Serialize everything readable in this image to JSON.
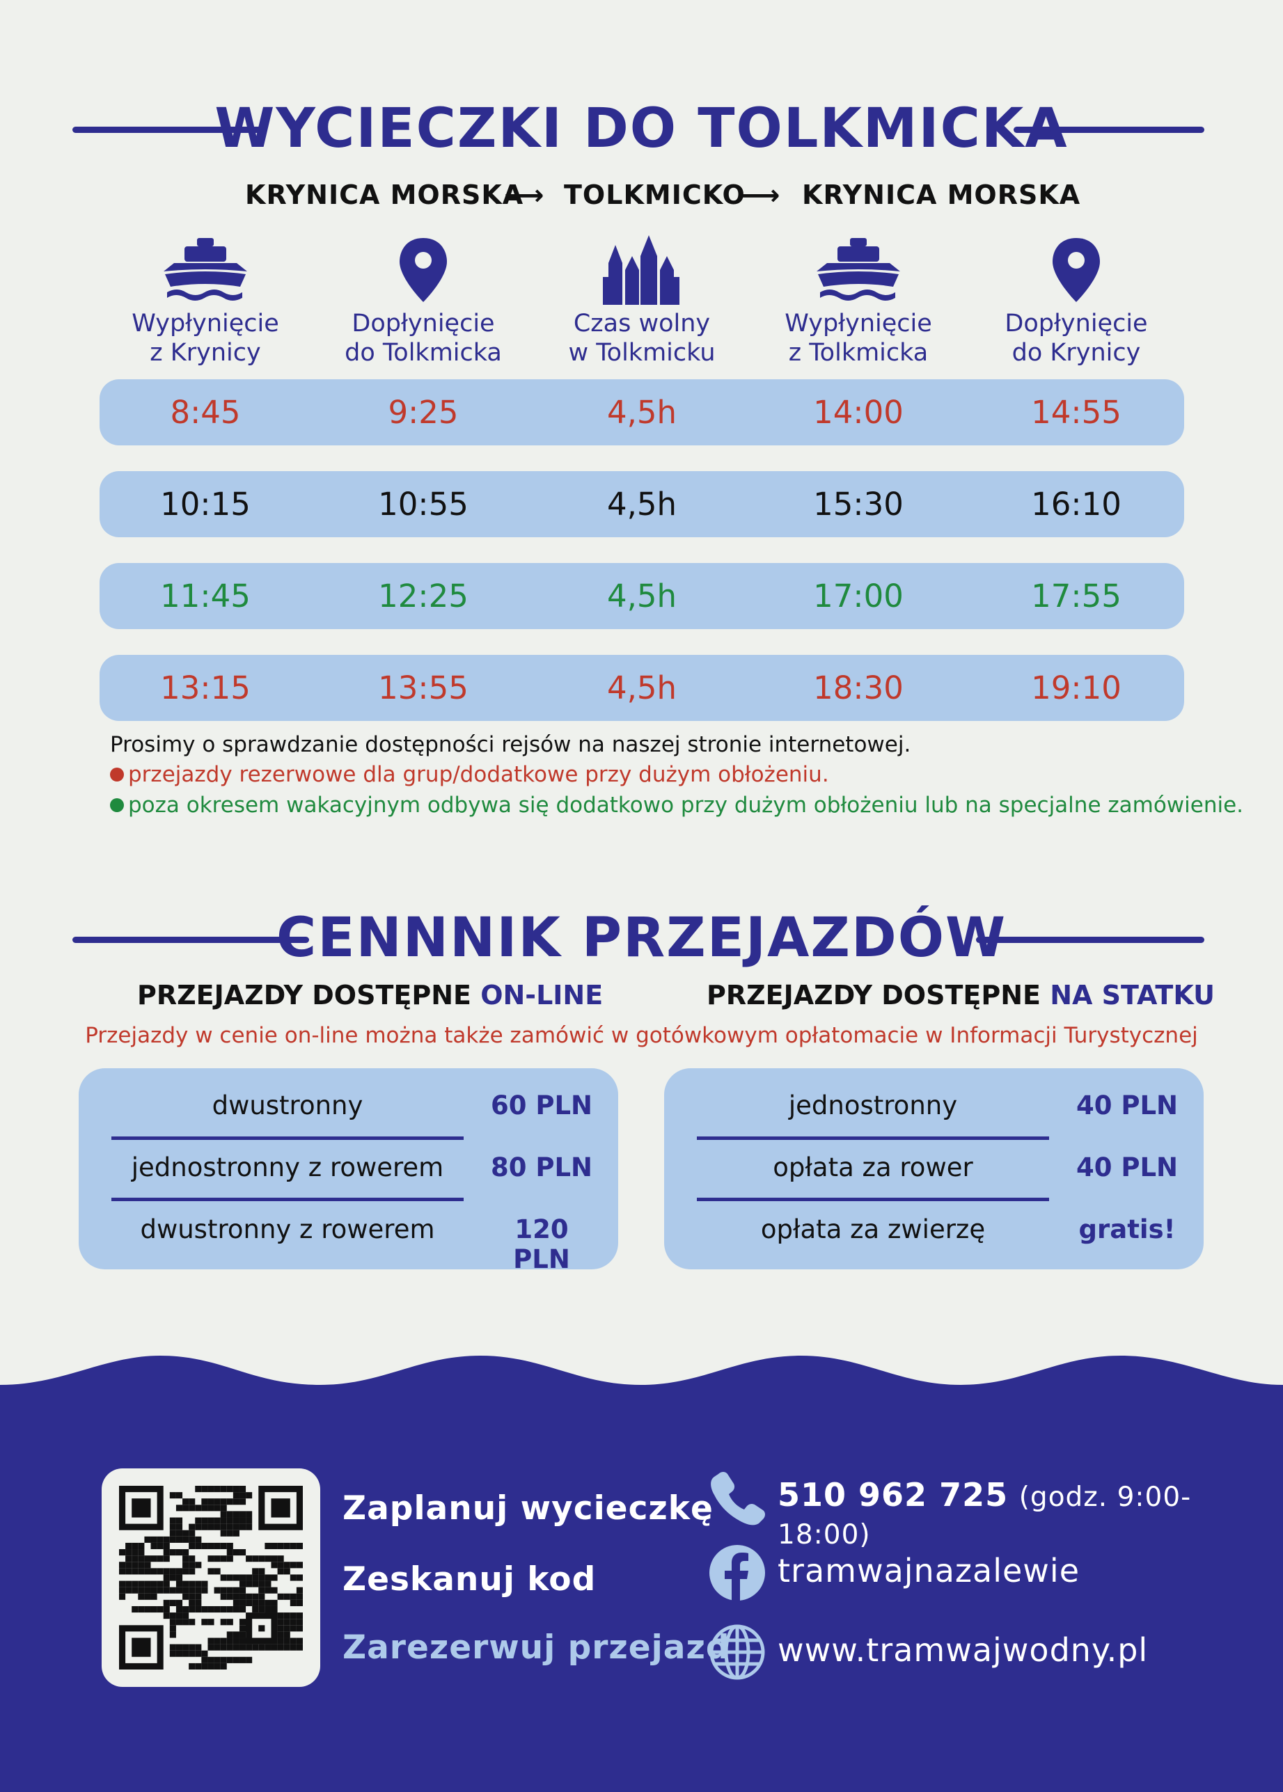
{
  "schedule": {
    "title": "WYCIECZKI DO TOLKMICKA",
    "route": [
      "KRYNICA MORSKA",
      "TOLKMICKO",
      "KRYNICA MORSKA"
    ],
    "route_arrow": "⟶",
    "columns": [
      {
        "icon": "ship-icon",
        "label_1": "Wypłynięcie",
        "label_2": "z Krynicy"
      },
      {
        "icon": "location-pin-icon",
        "label_1": "Dopłynięcie",
        "label_2": "do Tolkmicka"
      },
      {
        "icon": "church-icon",
        "label_1": "Czas wolny",
        "label_2": "w Tolkmicku"
      },
      {
        "icon": "ship-icon",
        "label_1": "Wypłynięcie",
        "label_2": "z Tolkmicka"
      },
      {
        "icon": "location-pin-icon",
        "label_1": "Dopłynięcie",
        "label_2": "do Krynicy"
      }
    ],
    "rows": [
      {
        "color": "#c0392b",
        "cells": [
          "8:45",
          "9:25",
          "4,5h",
          "14:00",
          "14:55"
        ]
      },
      {
        "color": "#111111",
        "cells": [
          "10:15",
          "10:55",
          "4,5h",
          "15:30",
          "16:10"
        ]
      },
      {
        "color": "#1f8a3e",
        "cells": [
          "11:45",
          "12:25",
          "4,5h",
          "17:00",
          "17:55"
        ]
      },
      {
        "color": "#c0392b",
        "cells": [
          "13:15",
          "13:55",
          "4,5h",
          "18:30",
          "19:10"
        ]
      }
    ],
    "notes": {
      "general": "Prosimy o sprawdzanie dostępności rejsów na naszej stronie internetowej.",
      "red": "przejazdy rezerwowe dla grup/dodatkowe przy dużym obłożeniu.",
      "green": "poza okresem wakacyjnym odbywa się dodatkowo przy dużym obłożeniu lub na specjalne zamówienie.",
      "red_color": "#c0392b",
      "green_color": "#1f8a3e"
    }
  },
  "pricing": {
    "title": "CENNNIK PRZEJAZDÓW",
    "online_heading_prefix": "PRZEJAZDY DOSTĘPNE ",
    "online_heading_accent": "ON-LINE",
    "ship_heading_prefix": "PRZEJAZDY DOSTĘPNE ",
    "ship_heading_accent": "NA STATKU",
    "info": "Przejazdy w cenie on-line można także zamówić w gotówkowym opłatomacie w Informacji Turystycznej",
    "online": [
      {
        "name": "dwustronny",
        "price": "60 PLN"
      },
      {
        "name": "jednostronny z rowerem",
        "price": "80 PLN"
      },
      {
        "name": "dwustronny z rowerem",
        "price": "120 PLN"
      }
    ],
    "ship": [
      {
        "name": "jednostronny",
        "price": "40 PLN"
      },
      {
        "name": "opłata za rower",
        "price": "40 PLN"
      },
      {
        "name": "opłata za zwierzę",
        "price": "gratis!"
      }
    ]
  },
  "footer": {
    "cta_1": "Zaplanuj wycieczkę",
    "cta_2": "Zeskanuj kod",
    "cta_3": "Zarezerwuj przejazd",
    "phone": "510 962 725",
    "phone_hours": "(godz. 9:00-18:00)",
    "facebook": "tramwajnazalewie",
    "website": "www.tramwajwodny.pl",
    "accent_color": "#2e2d8f",
    "highlight_color": "#aecaea"
  }
}
